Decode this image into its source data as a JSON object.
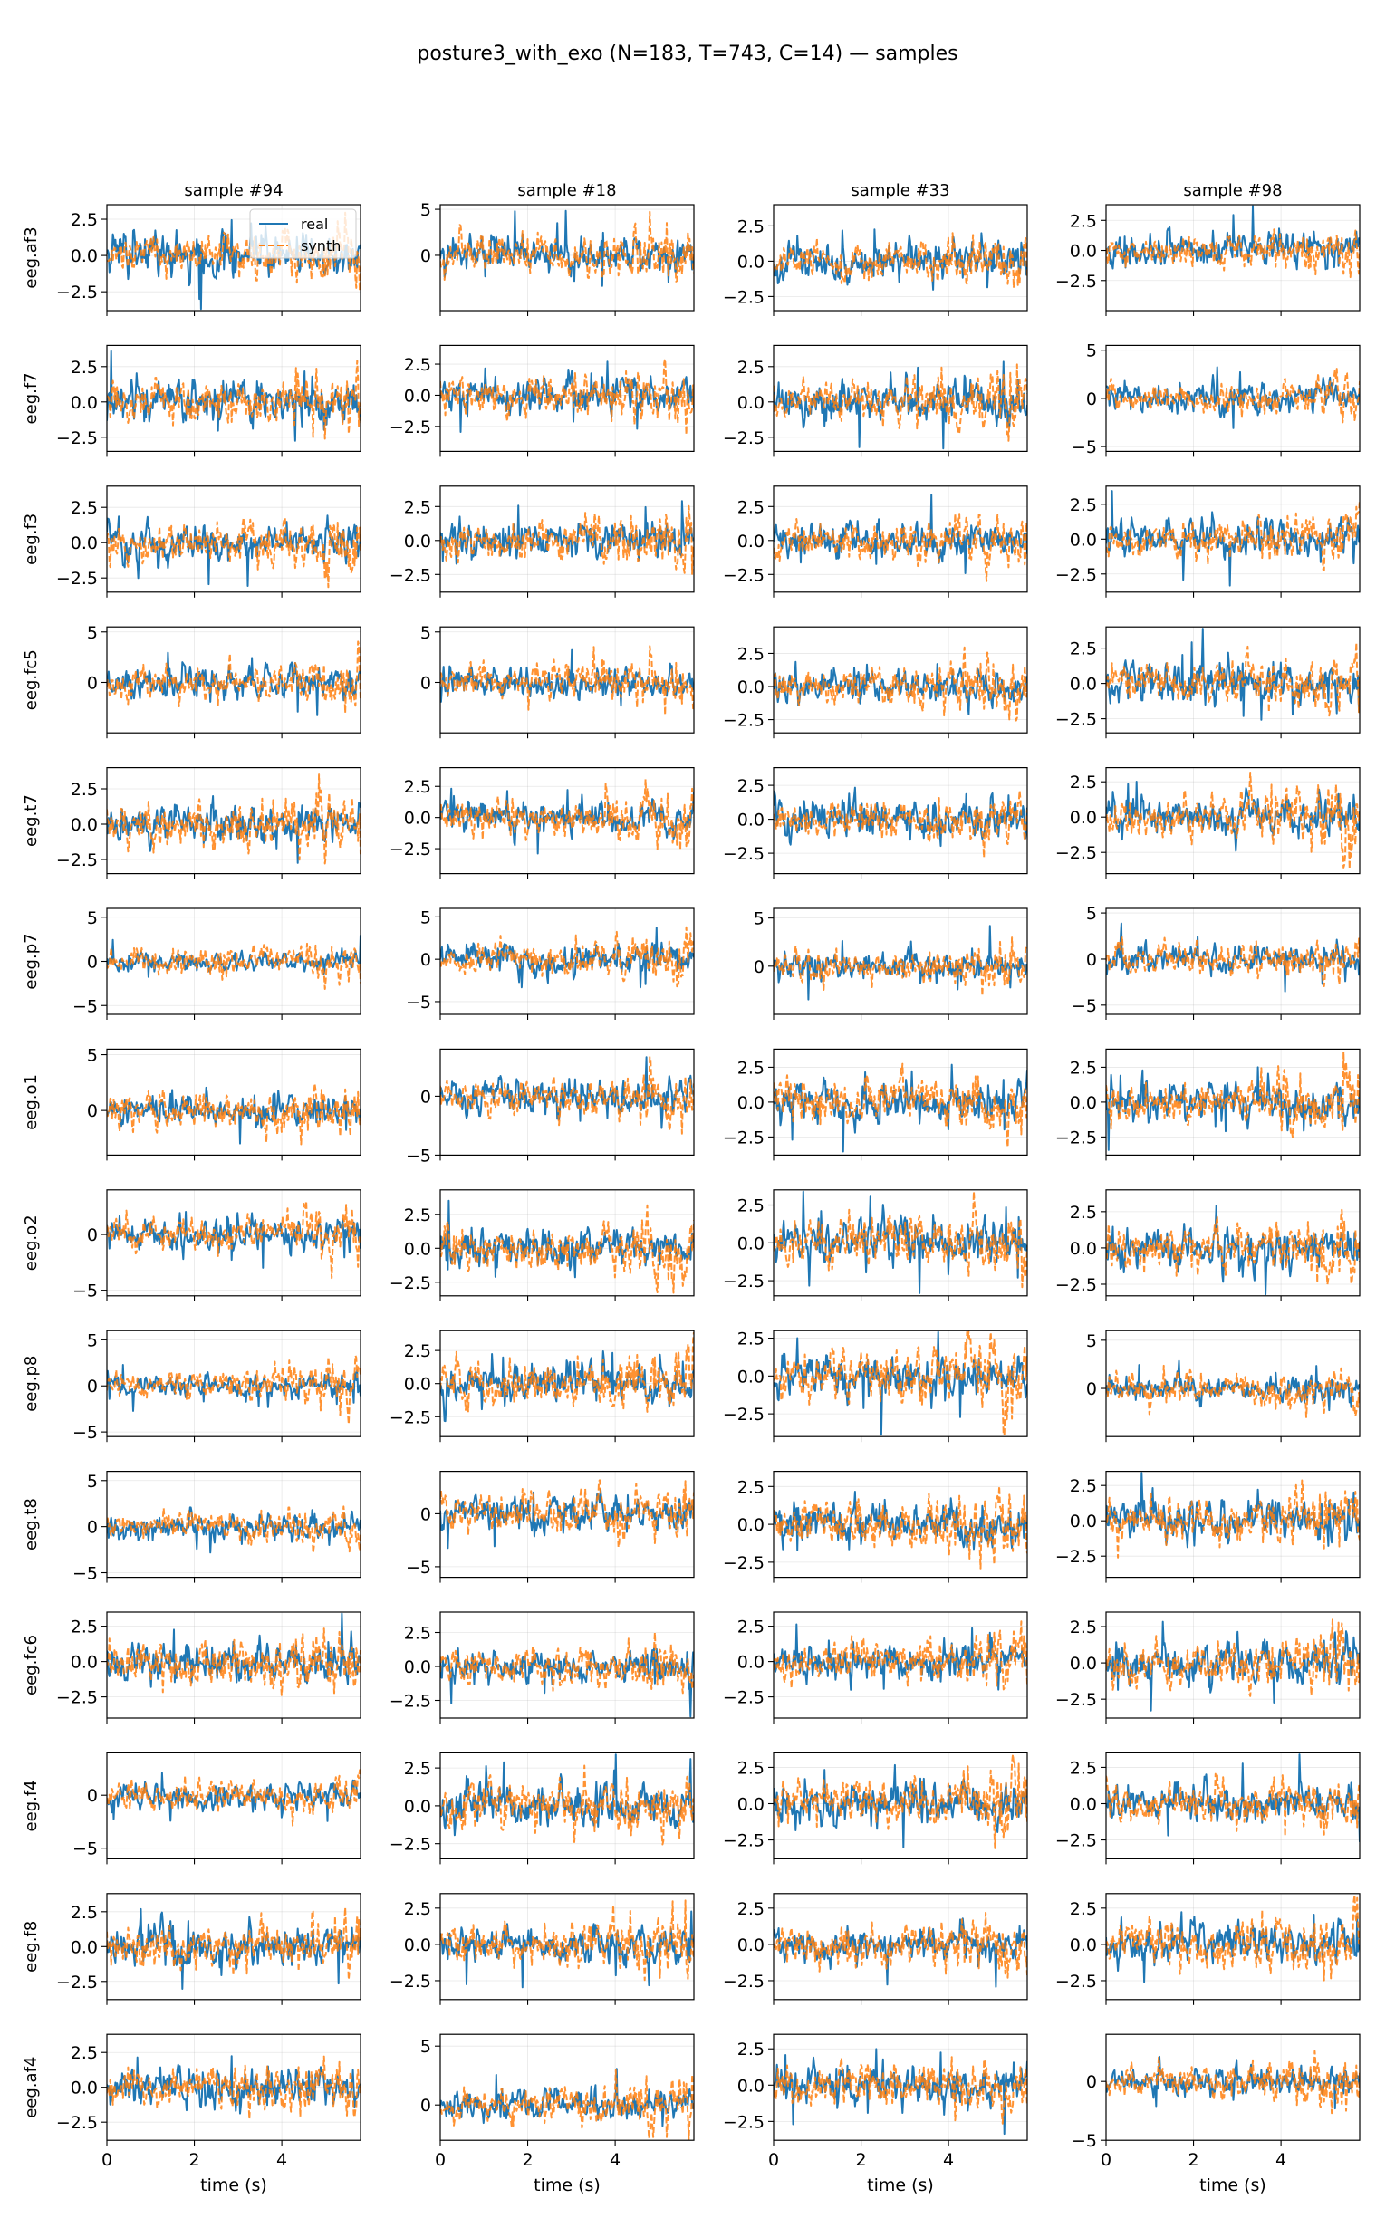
{
  "figure_title": "posture3_with_exo (N=183, T=743, C=14) — samples",
  "chart_data": {
    "type": "line",
    "title": "posture3_with_exo (N=183, T=743, C=14) — samples",
    "xlabel": "time (s)",
    "xlim": [
      0,
      5.8
    ],
    "x_ticks": [
      0,
      2,
      4
    ],
    "n_timesteps": 743,
    "grid": true,
    "legend": {
      "placement": "upper-right",
      "location": "first subplot",
      "entries": [
        "real",
        "synth"
      ]
    },
    "series_styles": {
      "real": {
        "color": "#1f77b4",
        "dash": "solid"
      },
      "synth": {
        "color": "#ff7f0e",
        "dash": "dashed"
      }
    },
    "columns": [
      "sample #94",
      "sample #18",
      "sample #33",
      "sample #98"
    ],
    "rows": [
      {
        "channel": "eeg.af3",
        "panels": [
          {
            "ylim": [
              -3.8,
              3.5
            ],
            "yticks": [
              2.5,
              0.0,
              -2.5
            ],
            "real_amp": 1.4,
            "synth_amp": 0.9
          },
          {
            "ylim": [
              -6,
              5.5
            ],
            "yticks": [
              5,
              0
            ],
            "real_amp": 1.6,
            "synth_amp": 1.6
          },
          {
            "ylim": [
              -3.5,
              4
            ],
            "yticks": [
              2.5,
              0.0,
              -2.5
            ],
            "real_amp": 1.2,
            "synth_amp": 1.0
          },
          {
            "ylim": [
              -5,
              3.8
            ],
            "yticks": [
              2.5,
              0.0,
              -2.5
            ],
            "real_amp": 1.2,
            "synth_amp": 1.0
          }
        ]
      },
      {
        "channel": "eeg.f7",
        "panels": [
          {
            "ylim": [
              -3.5,
              4
            ],
            "yticks": [
              2.5,
              0.0,
              -2.5
            ],
            "real_amp": 1.3,
            "synth_amp": 1.2
          },
          {
            "ylim": [
              -4.5,
              4
            ],
            "yticks": [
              2.5,
              0.0,
              -2.5
            ],
            "real_amp": 1.2,
            "synth_amp": 1.2
          },
          {
            "ylim": [
              -3.5,
              4
            ],
            "yticks": [
              2.5,
              0.0,
              -2.5
            ],
            "real_amp": 1.3,
            "synth_amp": 1.2
          },
          {
            "ylim": [
              -5.5,
              5.5
            ],
            "yticks": [
              5,
              0,
              -5
            ],
            "real_amp": 1.3,
            "synth_amp": 1.1
          }
        ]
      },
      {
        "channel": "eeg.f3",
        "panels": [
          {
            "ylim": [
              -3.5,
              4
            ],
            "yticks": [
              2.5,
              0.0,
              -2.5
            ],
            "real_amp": 1.1,
            "synth_amp": 1.1
          },
          {
            "ylim": [
              -3.8,
              4
            ],
            "yticks": [
              2.5,
              0.0,
              -2.5
            ],
            "real_amp": 1.2,
            "synth_amp": 1.1
          },
          {
            "ylim": [
              -3.8,
              4
            ],
            "yticks": [
              2.5,
              0.0,
              -2.5
            ],
            "real_amp": 1.1,
            "synth_amp": 1.1
          },
          {
            "ylim": [
              -3.8,
              3.8
            ],
            "yticks": [
              2.5,
              0.0,
              -2.5
            ],
            "real_amp": 1.1,
            "synth_amp": 1.1
          }
        ]
      },
      {
        "channel": "eeg.fc5",
        "panels": [
          {
            "ylim": [
              -5,
              5.5
            ],
            "yticks": [
              5,
              0
            ],
            "real_amp": 1.4,
            "synth_amp": 1.3
          },
          {
            "ylim": [
              -5,
              5.5
            ],
            "yticks": [
              5,
              0
            ],
            "real_amp": 1.3,
            "synth_amp": 1.3
          },
          {
            "ylim": [
              -3.5,
              4.5
            ],
            "yticks": [
              2.5,
              0.0,
              -2.5
            ],
            "real_amp": 1.1,
            "synth_amp": 1.1
          },
          {
            "ylim": [
              -3.5,
              4
            ],
            "yticks": [
              2.5,
              0.0,
              -2.5
            ],
            "real_amp": 1.2,
            "synth_amp": 1.1
          }
        ]
      },
      {
        "channel": "eeg.t7",
        "panels": [
          {
            "ylim": [
              -3.5,
              4
            ],
            "yticks": [
              2.5,
              0.0,
              -2.5
            ],
            "real_amp": 1.2,
            "synth_amp": 1.2
          },
          {
            "ylim": [
              -4.5,
              4
            ],
            "yticks": [
              2.5,
              0.0,
              -2.5
            ],
            "real_amp": 1.1,
            "synth_amp": 1.2
          },
          {
            "ylim": [
              -4,
              3.8
            ],
            "yticks": [
              2.5,
              0.0,
              -2.5
            ],
            "real_amp": 1.2,
            "synth_amp": 1.1
          },
          {
            "ylim": [
              -4,
              3.5
            ],
            "yticks": [
              2.5,
              0.0,
              -2.5
            ],
            "real_amp": 1.2,
            "synth_amp": 1.2
          }
        ]
      },
      {
        "channel": "eeg.p7",
        "panels": [
          {
            "ylim": [
              -6,
              6
            ],
            "yticks": [
              5,
              0,
              -5
            ],
            "real_amp": 0.9,
            "synth_amp": 1.1
          },
          {
            "ylim": [
              -6.5,
              6
            ],
            "yticks": [
              5,
              0,
              -5
            ],
            "real_amp": 1.5,
            "synth_amp": 1.4
          },
          {
            "ylim": [
              -5,
              6
            ],
            "yticks": [
              5,
              0
            ],
            "real_amp": 1.2,
            "synth_amp": 1.3
          },
          {
            "ylim": [
              -6,
              5.5
            ],
            "yticks": [
              5,
              0,
              -5
            ],
            "real_amp": 1.2,
            "synth_amp": 1.3
          }
        ]
      },
      {
        "channel": "eeg.o1",
        "panels": [
          {
            "ylim": [
              -4,
              5.5
            ],
            "yticks": [
              5,
              0
            ],
            "real_amp": 1.1,
            "synth_amp": 1.2
          },
          {
            "ylim": [
              -5,
              4
            ],
            "yticks": [
              0,
              -5
            ],
            "real_amp": 1.3,
            "synth_amp": 1.2
          },
          {
            "ylim": [
              -3.8,
              3.8
            ],
            "yticks": [
              2.5,
              0.0,
              -2.5
            ],
            "real_amp": 1.2,
            "synth_amp": 1.2
          },
          {
            "ylim": [
              -3.8,
              3.8
            ],
            "yticks": [
              2.5,
              0.0,
              -2.5
            ],
            "real_amp": 1.2,
            "synth_amp": 1.2
          }
        ]
      },
      {
        "channel": "eeg.o2",
        "panels": [
          {
            "ylim": [
              -5.5,
              4
            ],
            "yticks": [
              0,
              -5
            ],
            "real_amp": 1.3,
            "synth_amp": 1.2
          },
          {
            "ylim": [
              -3.5,
              4.3
            ],
            "yticks": [
              2.5,
              0.0,
              -2.5
            ],
            "real_amp": 1.2,
            "synth_amp": 1.2
          },
          {
            "ylim": [
              -3.5,
              3.5
            ],
            "yticks": [
              2.5,
              0.0,
              -2.5
            ],
            "real_amp": 1.2,
            "synth_amp": 1.2
          },
          {
            "ylim": [
              -3.3,
              4
            ],
            "yticks": [
              2.5,
              0.0,
              -2.5
            ],
            "real_amp": 1.2,
            "synth_amp": 1.2
          }
        ]
      },
      {
        "channel": "eeg.p8",
        "panels": [
          {
            "ylim": [
              -5.5,
              6
            ],
            "yticks": [
              5,
              0,
              -5
            ],
            "real_amp": 1.0,
            "synth_amp": 1.2
          },
          {
            "ylim": [
              -4,
              4
            ],
            "yticks": [
              2.5,
              0.0,
              -2.5
            ],
            "real_amp": 1.3,
            "synth_amp": 1.3
          },
          {
            "ylim": [
              -4,
              3
            ],
            "yticks": [
              2.5,
              0.0,
              -2.5
            ],
            "real_amp": 1.2,
            "synth_amp": 1.2
          },
          {
            "ylim": [
              -5,
              6
            ],
            "yticks": [
              5,
              0
            ],
            "real_amp": 1.1,
            "synth_amp": 1.2
          }
        ]
      },
      {
        "channel": "eeg.t8",
        "panels": [
          {
            "ylim": [
              -5.5,
              6
            ],
            "yticks": [
              5,
              0,
              -5
            ],
            "real_amp": 1.2,
            "synth_amp": 1.1
          },
          {
            "ylim": [
              -6,
              4
            ],
            "yticks": [
              0,
              -5
            ],
            "real_amp": 1.5,
            "synth_amp": 1.4
          },
          {
            "ylim": [
              -3.5,
              3.5
            ],
            "yticks": [
              2.5,
              0.0,
              -2.5
            ],
            "real_amp": 1.2,
            "synth_amp": 1.2
          },
          {
            "ylim": [
              -4,
              3.5
            ],
            "yticks": [
              2.5,
              0.0,
              -2.5
            ],
            "real_amp": 1.2,
            "synth_amp": 1.2
          }
        ]
      },
      {
        "channel": "eeg.fc6",
        "panels": [
          {
            "ylim": [
              -4,
              3.5
            ],
            "yticks": [
              2.5,
              0.0,
              -2.5
            ],
            "real_amp": 1.2,
            "synth_amp": 1.2
          },
          {
            "ylim": [
              -3.8,
              4
            ],
            "yticks": [
              2.5,
              0.0,
              -2.5
            ],
            "real_amp": 1.0,
            "synth_amp": 1.1
          },
          {
            "ylim": [
              -4,
              3.5
            ],
            "yticks": [
              2.5,
              0.0,
              -2.5
            ],
            "real_amp": 1.0,
            "synth_amp": 1.1
          },
          {
            "ylim": [
              -3.8,
              3.5
            ],
            "yticks": [
              2.5,
              0.0,
              -2.5
            ],
            "real_amp": 1.2,
            "synth_amp": 1.2
          }
        ]
      },
      {
        "channel": "eeg.f4",
        "panels": [
          {
            "ylim": [
              -6,
              4
            ],
            "yticks": [
              0,
              -5
            ],
            "real_amp": 1.1,
            "synth_amp": 1.1
          },
          {
            "ylim": [
              -3.5,
              3.5
            ],
            "yticks": [
              2.5,
              0.0,
              -2.5
            ],
            "real_amp": 1.2,
            "synth_amp": 1.2
          },
          {
            "ylim": [
              -3.8,
              3.5
            ],
            "yticks": [
              2.5,
              0.0,
              -2.5
            ],
            "real_amp": 1.2,
            "synth_amp": 1.2
          },
          {
            "ylim": [
              -3.8,
              3.5
            ],
            "yticks": [
              2.5,
              0.0,
              -2.5
            ],
            "real_amp": 1.1,
            "synth_amp": 1.1
          }
        ]
      },
      {
        "channel": "eeg.f8",
        "panels": [
          {
            "ylim": [
              -3.8,
              3.8
            ],
            "yticks": [
              2.5,
              0.0,
              -2.5
            ],
            "real_amp": 1.3,
            "synth_amp": 1.2
          },
          {
            "ylim": [
              -3.8,
              3.5
            ],
            "yticks": [
              2.5,
              0.0,
              -2.5
            ],
            "real_amp": 1.0,
            "synth_amp": 1.2
          },
          {
            "ylim": [
              -3.8,
              3.5
            ],
            "yticks": [
              2.5,
              0.0,
              -2.5
            ],
            "real_amp": 1.0,
            "synth_amp": 1.1
          },
          {
            "ylim": [
              -3.8,
              3.5
            ],
            "yticks": [
              2.5,
              0.0,
              -2.5
            ],
            "real_amp": 1.3,
            "synth_amp": 1.3
          }
        ]
      },
      {
        "channel": "eeg.af4",
        "panels": [
          {
            "ylim": [
              -3.8,
              3.8
            ],
            "yticks": [
              2.5,
              0.0,
              -2.5
            ],
            "real_amp": 1.1,
            "synth_amp": 1.1
          },
          {
            "ylim": [
              -3,
              6
            ],
            "yticks": [
              5,
              0
            ],
            "real_amp": 1.1,
            "synth_amp": 1.2
          },
          {
            "ylim": [
              -3.8,
              3.5
            ],
            "yticks": [
              2.5,
              0.0,
              -2.5
            ],
            "real_amp": 1.1,
            "synth_amp": 1.2
          },
          {
            "ylim": [
              -5,
              4
            ],
            "yticks": [
              0,
              -5
            ],
            "real_amp": 1.0,
            "synth_amp": 1.1
          }
        ]
      }
    ]
  }
}
